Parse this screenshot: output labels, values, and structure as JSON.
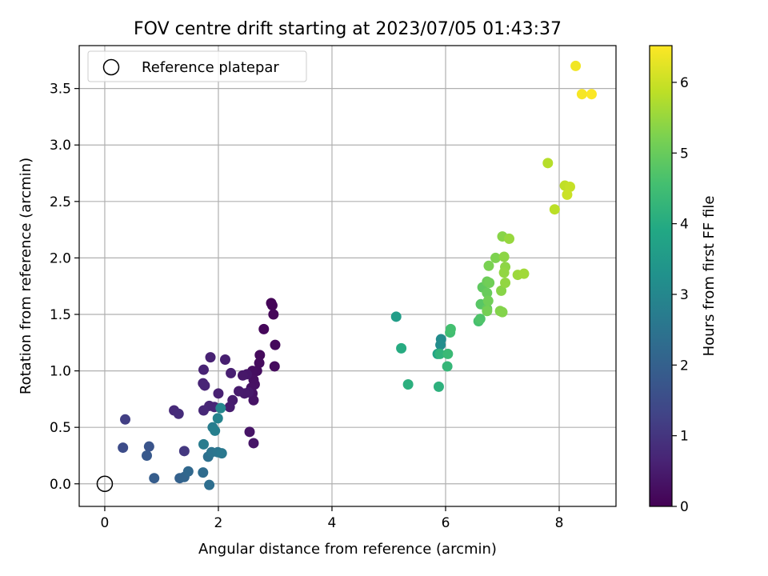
{
  "chart_data": {
    "type": "scatter",
    "title": "FOV centre drift starting at 2023/07/05 01:43:37",
    "xlabel": "Angular distance from reference (arcmin)",
    "ylabel": "Rotation from reference (arcmin)",
    "xlim": [
      -0.45,
      9.0
    ],
    "ylim": [
      -0.2,
      3.88
    ],
    "xticks": [
      0,
      2,
      4,
      6,
      8
    ],
    "xtick_labels": [
      "0",
      "2",
      "4",
      "6",
      "8"
    ],
    "yticks": [
      0.0,
      0.5,
      1.0,
      1.5,
      2.0,
      2.5,
      3.0,
      3.5
    ],
    "ytick_labels": [
      "0.0",
      "0.5",
      "1.0",
      "1.5",
      "2.0",
      "2.5",
      "3.0",
      "3.5"
    ],
    "grid": true,
    "legend": {
      "placement": "top-left",
      "entries": [
        {
          "label": "Reference platepar",
          "marker": "open-circle",
          "color": "#000000"
        }
      ]
    },
    "reference_point": {
      "x": 0,
      "y": 0
    },
    "colorbar": {
      "label": "Hours from first FF file",
      "colormap": "viridis",
      "range": [
        0,
        6.52
      ],
      "ticks": [
        0,
        1,
        2,
        3,
        4,
        5,
        6
      ],
      "tick_labels": [
        "0",
        "1",
        "2",
        "3",
        "4",
        "5",
        "6"
      ]
    },
    "series": [
      {
        "marker": "filled-circle",
        "color_by": "hours",
        "points": [
          {
            "x": 2.93,
            "y": 1.6,
            "h": 0.05
          },
          {
            "x": 2.95,
            "y": 1.58,
            "h": 0.08
          },
          {
            "x": 2.97,
            "y": 1.5,
            "h": 0.1
          },
          {
            "x": 2.8,
            "y": 1.37,
            "h": 0.12
          },
          {
            "x": 3.0,
            "y": 1.23,
            "h": 0.14
          },
          {
            "x": 2.73,
            "y": 1.14,
            "h": 0.16
          },
          {
            "x": 2.99,
            "y": 1.04,
            "h": 0.18
          },
          {
            "x": 2.72,
            "y": 1.07,
            "h": 0.2
          },
          {
            "x": 2.68,
            "y": 1.0,
            "h": 0.22
          },
          {
            "x": 2.6,
            "y": 1.0,
            "h": 0.24
          },
          {
            "x": 2.62,
            "y": 0.92,
            "h": 0.26
          },
          {
            "x": 2.64,
            "y": 0.88,
            "h": 0.28
          },
          {
            "x": 2.58,
            "y": 0.85,
            "h": 0.3
          },
          {
            "x": 2.6,
            "y": 0.8,
            "h": 0.32
          },
          {
            "x": 2.62,
            "y": 0.74,
            "h": 0.34
          },
          {
            "x": 2.55,
            "y": 0.46,
            "h": 0.36
          },
          {
            "x": 2.62,
            "y": 0.36,
            "h": 0.38
          },
          {
            "x": 2.5,
            "y": 0.97,
            "h": 0.4
          },
          {
            "x": 2.43,
            "y": 0.96,
            "h": 0.42
          },
          {
            "x": 2.53,
            "y": 0.81,
            "h": 0.44
          },
          {
            "x": 2.46,
            "y": 0.8,
            "h": 0.46
          },
          {
            "x": 2.36,
            "y": 0.82,
            "h": 0.48
          },
          {
            "x": 2.25,
            "y": 0.74,
            "h": 0.5
          },
          {
            "x": 2.2,
            "y": 0.68,
            "h": 0.52
          },
          {
            "x": 2.12,
            "y": 1.1,
            "h": 0.55
          },
          {
            "x": 2.22,
            "y": 0.98,
            "h": 0.58
          },
          {
            "x": 2.0,
            "y": 0.8,
            "h": 0.6
          },
          {
            "x": 1.86,
            "y": 1.12,
            "h": 0.62
          },
          {
            "x": 1.74,
            "y": 1.01,
            "h": 0.64
          },
          {
            "x": 1.73,
            "y": 0.89,
            "h": 0.66
          },
          {
            "x": 1.76,
            "y": 0.87,
            "h": 0.68
          },
          {
            "x": 1.84,
            "y": 0.69,
            "h": 0.7
          },
          {
            "x": 1.93,
            "y": 0.68,
            "h": 0.72
          },
          {
            "x": 1.74,
            "y": 0.65,
            "h": 0.74
          },
          {
            "x": 1.22,
            "y": 0.65,
            "h": 0.78
          },
          {
            "x": 1.3,
            "y": 0.62,
            "h": 0.82
          },
          {
            "x": 1.4,
            "y": 0.29,
            "h": 1.05
          },
          {
            "x": 0.36,
            "y": 0.57,
            "h": 1.2
          },
          {
            "x": 0.32,
            "y": 0.32,
            "h": 1.5
          },
          {
            "x": 0.78,
            "y": 0.33,
            "h": 1.7
          },
          {
            "x": 0.74,
            "y": 0.25,
            "h": 1.8
          },
          {
            "x": 0.87,
            "y": 0.05,
            "h": 1.9
          },
          {
            "x": 1.32,
            "y": 0.05,
            "h": 2.0
          },
          {
            "x": 1.4,
            "y": 0.06,
            "h": 2.1
          },
          {
            "x": 1.47,
            "y": 0.11,
            "h": 2.2
          },
          {
            "x": 1.73,
            "y": 0.1,
            "h": 2.3
          },
          {
            "x": 1.84,
            "y": -0.01,
            "h": 2.35
          },
          {
            "x": 1.82,
            "y": 0.24,
            "h": 2.4
          },
          {
            "x": 1.88,
            "y": 0.28,
            "h": 2.5
          },
          {
            "x": 1.99,
            "y": 0.28,
            "h": 2.55
          },
          {
            "x": 2.06,
            "y": 0.27,
            "h": 2.6
          },
          {
            "x": 1.74,
            "y": 0.35,
            "h": 2.7
          },
          {
            "x": 1.9,
            "y": 0.5,
            "h": 2.75
          },
          {
            "x": 1.94,
            "y": 0.47,
            "h": 2.8
          },
          {
            "x": 1.99,
            "y": 0.58,
            "h": 2.9
          },
          {
            "x": 2.04,
            "y": 0.67,
            "h": 3.0
          },
          {
            "x": 5.92,
            "y": 1.28,
            "h": 3.1
          },
          {
            "x": 5.91,
            "y": 1.23,
            "h": 3.15
          },
          {
            "x": 5.13,
            "y": 1.48,
            "h": 3.6
          },
          {
            "x": 5.86,
            "y": 1.15,
            "h": 3.8
          },
          {
            "x": 5.22,
            "y": 1.2,
            "h": 4.0
          },
          {
            "x": 5.34,
            "y": 0.88,
            "h": 4.1
          },
          {
            "x": 5.88,
            "y": 0.86,
            "h": 4.15
          },
          {
            "x": 5.9,
            "y": 1.15,
            "h": 4.2
          },
          {
            "x": 6.03,
            "y": 1.04,
            "h": 4.3
          },
          {
            "x": 6.04,
            "y": 1.15,
            "h": 4.4
          },
          {
            "x": 6.08,
            "y": 1.34,
            "h": 4.5
          },
          {
            "x": 6.09,
            "y": 1.37,
            "h": 4.55
          },
          {
            "x": 6.58,
            "y": 1.44,
            "h": 4.6
          },
          {
            "x": 6.61,
            "y": 1.46,
            "h": 4.7
          },
          {
            "x": 6.62,
            "y": 1.59,
            "h": 4.8
          },
          {
            "x": 6.65,
            "y": 1.74,
            "h": 4.9
          },
          {
            "x": 6.73,
            "y": 1.55,
            "h": 4.95
          },
          {
            "x": 6.73,
            "y": 1.69,
            "h": 5.0
          },
          {
            "x": 6.73,
            "y": 1.79,
            "h": 5.05
          },
          {
            "x": 6.77,
            "y": 1.78,
            "h": 5.1
          },
          {
            "x": 6.75,
            "y": 1.62,
            "h": 5.1
          },
          {
            "x": 6.73,
            "y": 1.53,
            "h": 5.15
          },
          {
            "x": 6.76,
            "y": 1.93,
            "h": 5.2
          },
          {
            "x": 6.88,
            "y": 2.0,
            "h": 5.25
          },
          {
            "x": 6.96,
            "y": 1.53,
            "h": 5.3
          },
          {
            "x": 7.0,
            "y": 1.52,
            "h": 5.3
          },
          {
            "x": 6.98,
            "y": 1.71,
            "h": 5.35
          },
          {
            "x": 7.0,
            "y": 2.19,
            "h": 5.35
          },
          {
            "x": 7.03,
            "y": 2.01,
            "h": 5.4
          },
          {
            "x": 7.05,
            "y": 1.92,
            "h": 5.4
          },
          {
            "x": 7.03,
            "y": 1.87,
            "h": 5.45
          },
          {
            "x": 7.05,
            "y": 1.78,
            "h": 5.45
          },
          {
            "x": 7.12,
            "y": 2.17,
            "h": 5.5
          },
          {
            "x": 7.27,
            "y": 1.85,
            "h": 5.55
          },
          {
            "x": 7.38,
            "y": 1.86,
            "h": 5.6
          },
          {
            "x": 7.8,
            "y": 2.84,
            "h": 5.8
          },
          {
            "x": 7.92,
            "y": 2.43,
            "h": 5.85
          },
          {
            "x": 8.1,
            "y": 2.64,
            "h": 5.9
          },
          {
            "x": 8.19,
            "y": 2.63,
            "h": 5.95
          },
          {
            "x": 8.14,
            "y": 2.56,
            "h": 6.0
          },
          {
            "x": 8.29,
            "y": 3.7,
            "h": 6.4
          },
          {
            "x": 8.4,
            "y": 3.45,
            "h": 6.45
          },
          {
            "x": 8.57,
            "y": 3.45,
            "h": 6.5
          }
        ]
      }
    ]
  }
}
